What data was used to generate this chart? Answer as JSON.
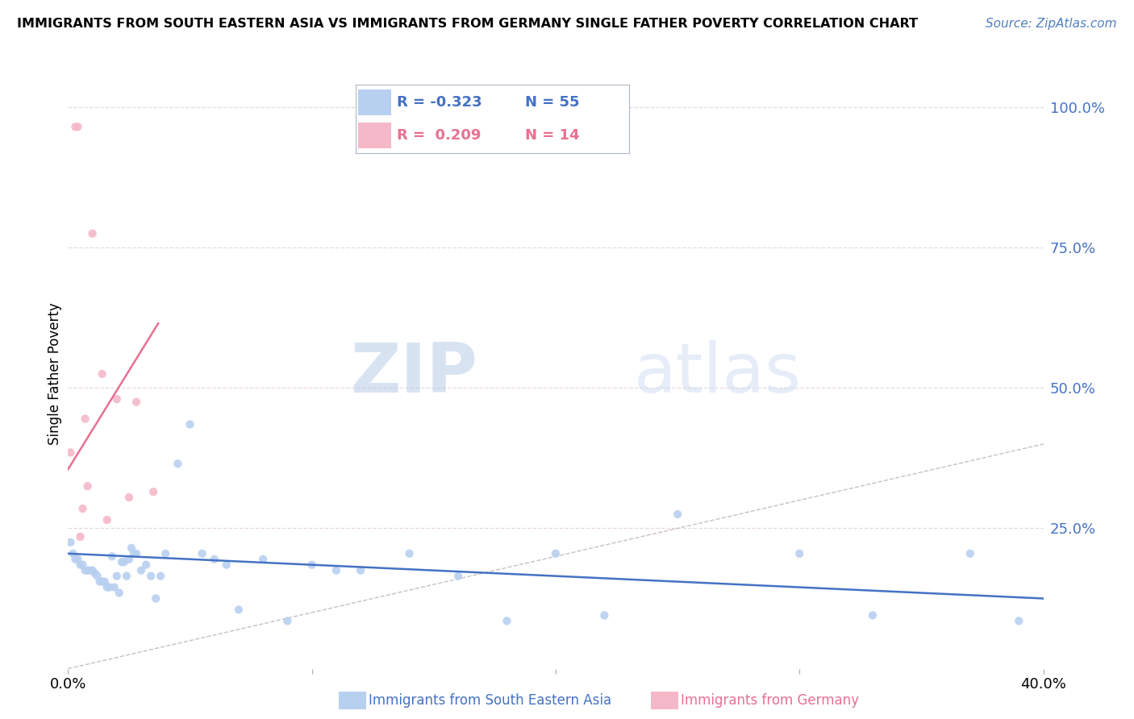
{
  "title": "IMMIGRANTS FROM SOUTH EASTERN ASIA VS IMMIGRANTS FROM GERMANY SINGLE FATHER POVERTY CORRELATION CHART",
  "source": "Source: ZipAtlas.com",
  "ylabel": "Single Father Poverty",
  "legend_blue_r": "-0.323",
  "legend_blue_n": "55",
  "legend_pink_r": "0.209",
  "legend_pink_n": "14",
  "legend_blue_label": "Immigrants from South Eastern Asia",
  "legend_pink_label": "Immigrants from Germany",
  "blue_color": "#b8d0f0",
  "pink_color": "#f5b8c8",
  "blue_line_color": "#4472c4",
  "pink_line_color": "#e87090",
  "diagonal_line_color": "#c8c0c0",
  "blue_scatter_x": [
    0.001,
    0.002,
    0.003,
    0.004,
    0.005,
    0.006,
    0.007,
    0.008,
    0.009,
    0.01,
    0.011,
    0.012,
    0.013,
    0.014,
    0.015,
    0.016,
    0.017,
    0.018,
    0.019,
    0.02,
    0.021,
    0.022,
    0.023,
    0.024,
    0.025,
    0.026,
    0.027,
    0.028,
    0.03,
    0.032,
    0.034,
    0.036,
    0.038,
    0.04,
    0.045,
    0.05,
    0.055,
    0.06,
    0.065,
    0.07,
    0.08,
    0.09,
    0.1,
    0.11,
    0.12,
    0.14,
    0.16,
    0.18,
    0.2,
    0.22,
    0.25,
    0.3,
    0.33,
    0.37,
    0.39
  ],
  "blue_scatter_y": [
    0.225,
    0.205,
    0.195,
    0.195,
    0.185,
    0.185,
    0.175,
    0.175,
    0.175,
    0.175,
    0.17,
    0.165,
    0.155,
    0.155,
    0.155,
    0.145,
    0.145,
    0.2,
    0.145,
    0.165,
    0.135,
    0.19,
    0.19,
    0.165,
    0.195,
    0.215,
    0.205,
    0.205,
    0.175,
    0.185,
    0.165,
    0.125,
    0.165,
    0.205,
    0.365,
    0.435,
    0.205,
    0.195,
    0.185,
    0.105,
    0.195,
    0.085,
    0.185,
    0.175,
    0.175,
    0.205,
    0.165,
    0.085,
    0.205,
    0.095,
    0.275,
    0.205,
    0.095,
    0.205,
    0.085
  ],
  "pink_scatter_x": [
    0.001,
    0.003,
    0.004,
    0.005,
    0.006,
    0.007,
    0.008,
    0.01,
    0.014,
    0.016,
    0.02,
    0.025,
    0.028,
    0.035
  ],
  "pink_scatter_y": [
    0.385,
    0.965,
    0.965,
    0.235,
    0.285,
    0.445,
    0.325,
    0.775,
    0.525,
    0.265,
    0.48,
    0.305,
    0.475,
    0.315
  ],
  "blue_trend_x": [
    0.0,
    0.4
  ],
  "blue_trend_y": [
    0.205,
    0.125
  ],
  "pink_trend_x": [
    0.0,
    0.037
  ],
  "pink_trend_y": [
    0.355,
    0.615
  ],
  "xlim": [
    0.0,
    0.4
  ],
  "ylim": [
    0.0,
    1.05
  ],
  "yticks": [
    0.25,
    0.5,
    0.75,
    1.0
  ],
  "yticklabels": [
    "25.0%",
    "50.0%",
    "75.0%",
    "100.0%"
  ],
  "xtick_positions": [
    0.0,
    0.1,
    0.2,
    0.3,
    0.4
  ],
  "xtick_labels": [
    "0.0%",
    "",
    "",
    "",
    "40.0%"
  ]
}
